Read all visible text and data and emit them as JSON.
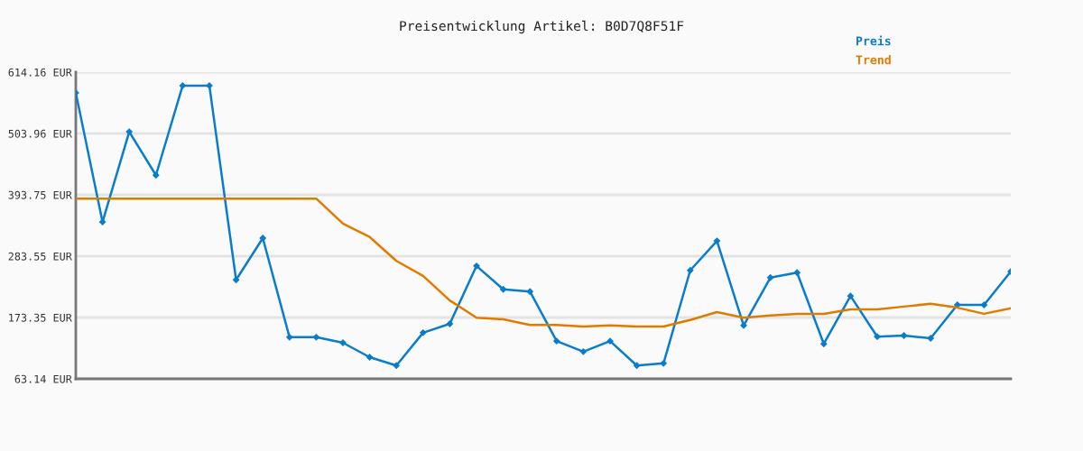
{
  "chart_data": {
    "type": "line",
    "title": "Preisentwicklung Artikel: B0D7Q8F51F",
    "categories": [
      null,
      null,
      null,
      null,
      null,
      null,
      null,
      null,
      null,
      null,
      null,
      null,
      null,
      null,
      null,
      null,
      null,
      null,
      null,
      null,
      null,
      null,
      null,
      null,
      null,
      null,
      null,
      null,
      null,
      null,
      null,
      null,
      null,
      null,
      null,
      null
    ],
    "series": [
      {
        "name": "Preis",
        "color": "#0a7ccc",
        "marker": "diamond",
        "values": [
          577,
          345,
          507,
          429,
          590,
          590,
          241,
          316,
          138,
          138,
          128,
          102,
          87,
          146,
          162,
          266,
          224,
          220,
          131,
          112,
          131,
          87,
          91,
          258,
          311,
          159,
          245,
          254,
          126,
          212,
          139,
          141,
          136,
          196,
          196,
          256
        ]
      },
      {
        "name": "Trend",
        "color": "#e07b00",
        "marker": "none",
        "values": [
          387,
          387,
          387,
          387,
          387,
          387,
          387,
          387,
          387,
          387,
          342,
          318,
          275,
          248,
          204,
          173,
          170,
          160,
          160,
          157,
          159,
          157,
          157,
          169,
          183,
          173,
          177,
          180,
          180,
          188,
          188,
          193,
          198,
          191,
          180,
          190
        ]
      }
    ],
    "ylim": [
      63.14,
      614.16
    ],
    "yticks": [
      {
        "value": 63.14,
        "label": "63.14 EUR"
      },
      {
        "value": 173.35,
        "label": "173.35 EUR"
      },
      {
        "value": 283.55,
        "label": "283.55 EUR"
      },
      {
        "value": 393.75,
        "label": "393.75 EUR"
      },
      {
        "value": 503.96,
        "label": "503.96 EUR"
      },
      {
        "value": 614.16,
        "label": "614.16 EUR"
      }
    ],
    "grid": "y",
    "legend": "top right"
  }
}
